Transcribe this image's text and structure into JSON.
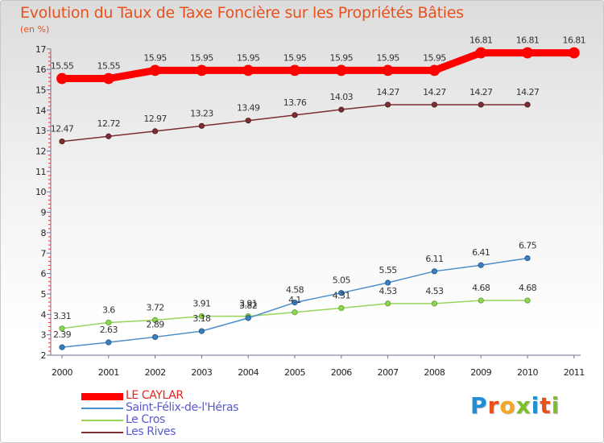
{
  "title": "Evolution du Taux de Taxe Foncière sur les Propriétés Bâties",
  "unit_label": "(en %)",
  "logo": {
    "text": "Proxiti",
    "letters": [
      "P",
      "r",
      "o",
      "x",
      "i",
      "t",
      "i"
    ],
    "colors": [
      "#1e8fd6",
      "#e8511c",
      "#f5a623",
      "#7cbf2a",
      "#1e8fd6",
      "#e8511c",
      "#7cbf2a"
    ]
  },
  "chart_data": {
    "type": "line",
    "title": "Evolution du Taux de Taxe Foncière sur les Propriétés Bâties",
    "ylabel": "(en %)",
    "xlabel": "",
    "x": [
      "2000",
      "2001",
      "2002",
      "2003",
      "2004",
      "2005",
      "2006",
      "2007",
      "2008",
      "2009",
      "2010",
      "2011"
    ],
    "y_ticks": [
      2,
      3,
      4,
      5,
      6,
      7,
      8,
      9,
      10,
      11,
      12,
      13,
      14,
      15,
      16,
      17
    ],
    "ylim": [
      2,
      17
    ],
    "grid": false,
    "legend_position": "bottom-left",
    "series": [
      {
        "name": "LE CAYLAR",
        "color": "#ff0000",
        "values": [
          15.55,
          15.55,
          15.95,
          15.95,
          15.95,
          15.95,
          15.95,
          15.95,
          15.95,
          16.81,
          16.81,
          16.81
        ],
        "labels": [
          "15.55",
          "15.55",
          "15.95",
          "15.95",
          "15.95",
          "15.95",
          "15.95",
          "15.95",
          "15.95",
          "16.81",
          "16.81",
          "16.81"
        ]
      },
      {
        "name": "Saint-Félix-de-l'Héras",
        "color": "#4c8ecb",
        "values": [
          2.39,
          2.63,
          2.89,
          3.18,
          3.82,
          4.58,
          5.05,
          5.55,
          6.11,
          6.41,
          6.75,
          null
        ],
        "labels": [
          "2.39",
          "2.63",
          "2.89",
          "3.18",
          "3.82",
          "4.58",
          "5.05",
          "5.55",
          "6.11",
          "6.41",
          "6.75",
          null
        ]
      },
      {
        "name": "Le Cros",
        "color": "#96d45a",
        "values": [
          3.31,
          3.6,
          3.72,
          3.91,
          3.91,
          4.1,
          4.31,
          4.53,
          4.53,
          4.68,
          4.68,
          null
        ],
        "labels": [
          "3.31",
          "3.6",
          "3.72",
          "3.91",
          "3.91",
          "4.1",
          "4.31",
          "4.53",
          "4.53",
          "4.68",
          "4.68",
          null
        ]
      },
      {
        "name": "Les Rives",
        "color": "#7d2e32",
        "values": [
          12.47,
          12.72,
          12.97,
          13.23,
          13.49,
          13.76,
          14.03,
          14.27,
          14.27,
          14.27,
          14.27,
          null
        ],
        "labels": [
          "12.47",
          "12.72",
          "12.97",
          "13.23",
          "13.49",
          "13.76",
          "14.03",
          "14.27",
          "14.27",
          "14.27",
          "14.27",
          null
        ]
      }
    ]
  }
}
